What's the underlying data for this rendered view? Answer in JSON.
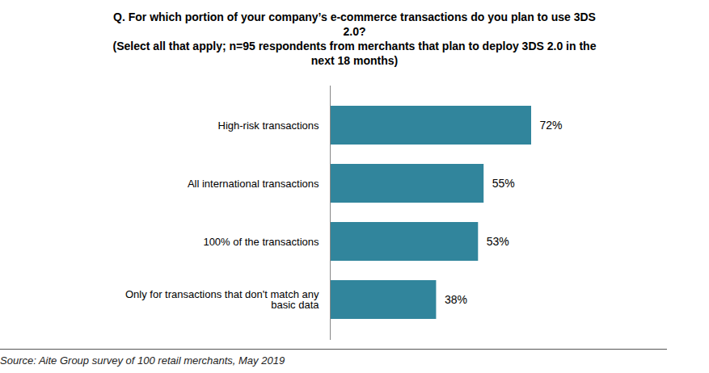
{
  "chart_data": {
    "type": "bar",
    "orientation": "horizontal",
    "title": "Q. For which portion of your company’s e-commerce transactions do you plan to use 3DS 2.0?",
    "subtitle": "(Select all that apply; n=95 respondents from merchants that plan to deploy 3DS 2.0 in the next 18 months)",
    "caption": "Source: Aite Group survey of 100 retail merchants, May 2019",
    "categories": [
      "High-risk transactions",
      "All international transactions",
      "100% of the transactions",
      "Only for transactions that don't match any basic data"
    ],
    "values": [
      72,
      55,
      53,
      38
    ],
    "value_labels": [
      "72%",
      "55%",
      "53%",
      "38%"
    ],
    "color": "#31859C",
    "data_labels": true,
    "tick_labels": "y",
    "grid": false
  }
}
